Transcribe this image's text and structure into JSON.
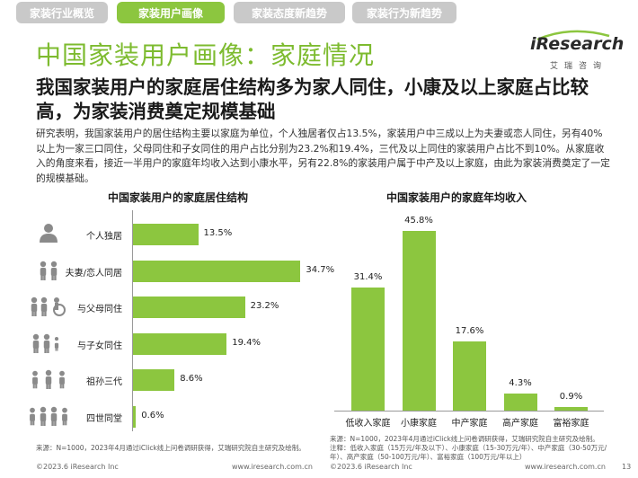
{
  "tabs": [
    {
      "label": "家装行业概览",
      "active": false
    },
    {
      "label": "家装用户画像",
      "active": true
    },
    {
      "label": "家装态度新趋势",
      "active": false
    },
    {
      "label": "家装行为新趋势",
      "active": false
    }
  ],
  "colors": {
    "accent": "#8cc63f",
    "tab_inactive": "#c9c9c9",
    "title": "#7dbb2f"
  },
  "page_title": "中国家装用户画像：家庭情况",
  "logo": {
    "brand": "iResearch",
    "sub": "艾瑞咨询"
  },
  "headline": "我国家装用户的家庭居住结构多为家人同住，小康及以上家庭占比较高，为家装消费奠定规模基础",
  "intro": "研究表明，我国家装用户的居住结构主要以家庭为单位，个人独居者仅占13.5%，家装用户中三成以上为夫妻或恋人同住，另有40%以上为一家三口同住，父母同住和子女同住的用户占比分别为23.2%和19.4%，三代及以上同住的家装用户占比不到10%。从家庭收入的角度来看，接近一半用户的家庭年均收入达到小康水平，另有22.8%的家装用户属于中产及以上家庭，由此为家装消费奠定了一定的规模基础。",
  "chart_data": [
    {
      "type": "bar",
      "orientation": "horizontal",
      "title": "中国家装用户的家庭居住结构",
      "categories": [
        "个人独居",
        "夫妻/恋人同居",
        "与父母同住",
        "与子女同住",
        "祖孙三代",
        "四世同堂"
      ],
      "values": [
        13.5,
        34.7,
        23.2,
        19.4,
        8.6,
        0.6
      ],
      "value_labels": [
        "13.5%",
        "34.7%",
        "23.2%",
        "19.4%",
        "8.6%",
        "0.6%"
      ],
      "icons": [
        "single-person-icon",
        "couple-icon",
        "with-parents-icon",
        "with-children-icon",
        "three-generations-icon",
        "four-generations-icon"
      ],
      "unit": "%"
    },
    {
      "type": "bar",
      "orientation": "vertical",
      "title": "中国家装用户的家庭年均收入",
      "categories": [
        "低收入家庭",
        "小康家庭",
        "中产家庭",
        "高产家庭",
        "富裕家庭"
      ],
      "values": [
        31.4,
        45.8,
        17.6,
        4.3,
        0.9
      ],
      "value_labels": [
        "31.4%",
        "45.8%",
        "17.6%",
        "4.3%",
        "0.9%"
      ],
      "unit": "%"
    }
  ],
  "sources": {
    "left": "来源：N=1000，2023年4月通过iClick线上问卷调研获得，艾瑞研究院自主研究及绘制。",
    "right_1": "来源：N=1000，2023年4月通过iClick线上问卷调研获得，艾瑞研究院自主研究及绘制。",
    "right_2": "注释：低收入家庭（15万元/年及以下）、小康家庭（15-30万元/年）、中产家庭（30-50万元/年）、高产家庭（50-100万元/年）、富裕家庭（100万元/年以上）"
  },
  "footer": {
    "copyright": "©2023.6 iResearch Inc",
    "website": "www.iresearch.com.cn",
    "page_number": "13"
  }
}
